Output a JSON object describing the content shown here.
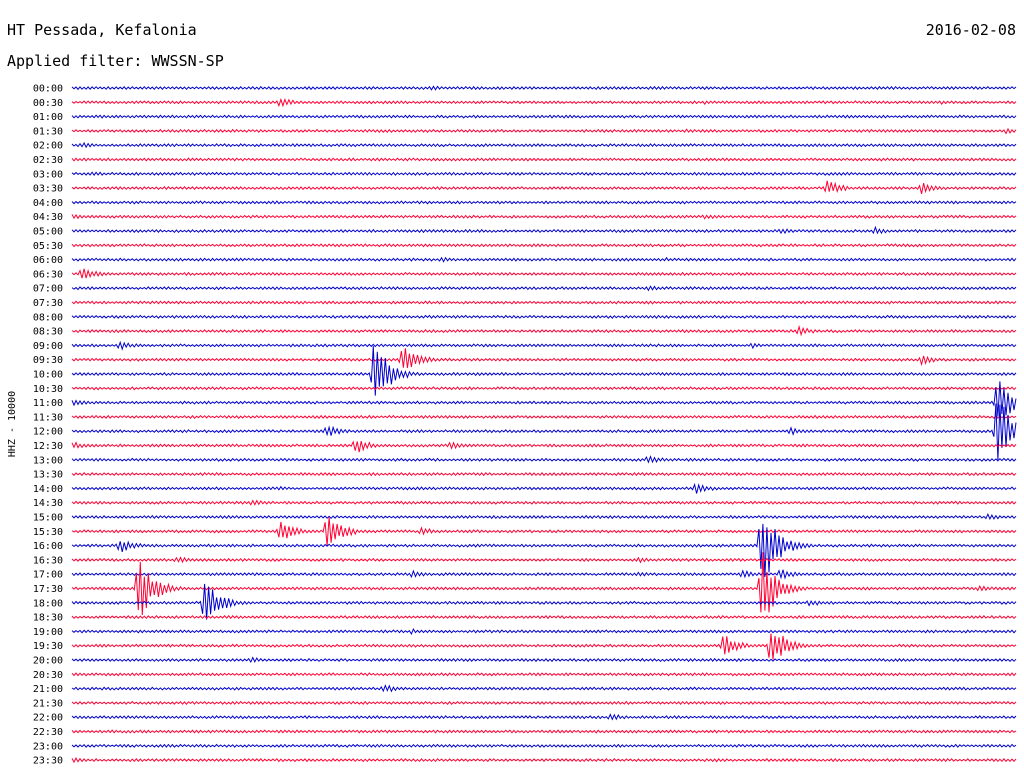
{
  "header": {
    "station": "HT Pessada, Kefalonia",
    "date": "2016-02-08",
    "filter": "Applied filter: WWSSN-SP"
  },
  "chart_data": {
    "type": "line",
    "title": "HT Pessada, Kefalonia",
    "subtitle": "Applied filter: WWSSN-SP",
    "date": "2016-02-08",
    "ylabel": "HHZ - 10000",
    "colors": [
      "#0000cc",
      "#ff0033"
    ],
    "traces": [
      {
        "time": "00:00",
        "events": [
          [
            0.38,
            3
          ]
        ]
      },
      {
        "time": "00:30",
        "events": [
          [
            0.22,
            5
          ],
          [
            0.67,
            2
          ],
          [
            0.92,
            2
          ]
        ]
      },
      {
        "time": "01:00",
        "events": []
      },
      {
        "time": "01:30",
        "events": [
          [
            0.65,
            2
          ],
          [
            0.99,
            3
          ]
        ]
      },
      {
        "time": "02:00",
        "events": [
          [
            0.01,
            3
          ],
          [
            0.86,
            2
          ]
        ]
      },
      {
        "time": "02:30",
        "events": []
      },
      {
        "time": "03:00",
        "events": [
          [
            0.02,
            3
          ]
        ]
      },
      {
        "time": "03:30",
        "events": [
          [
            0.8,
            8
          ],
          [
            0.9,
            6
          ]
        ]
      },
      {
        "time": "04:00",
        "events": []
      },
      {
        "time": "04:30",
        "events": [
          [
            0.0,
            3
          ],
          [
            0.67,
            3
          ]
        ]
      },
      {
        "time": "05:00",
        "events": [
          [
            0.75,
            3
          ],
          [
            0.85,
            4
          ]
        ]
      },
      {
        "time": "05:30",
        "events": []
      },
      {
        "time": "06:00",
        "events": [
          [
            0.39,
            3
          ],
          [
            0.63,
            2
          ]
        ]
      },
      {
        "time": "06:30",
        "events": [
          [
            0.01,
            8
          ]
        ]
      },
      {
        "time": "07:00",
        "events": [
          [
            0.61,
            3
          ]
        ]
      },
      {
        "time": "07:30",
        "events": []
      },
      {
        "time": "08:00",
        "events": [
          [
            0.62,
            2
          ]
        ]
      },
      {
        "time": "08:30",
        "events": [
          [
            0.77,
            5
          ]
        ]
      },
      {
        "time": "09:00",
        "events": [
          [
            0.05,
            5
          ],
          [
            0.72,
            3
          ]
        ]
      },
      {
        "time": "09:30",
        "events": [
          [
            0.35,
            16
          ],
          [
            0.9,
            5
          ]
        ]
      },
      {
        "time": "10:00",
        "events": [
          [
            0.32,
            36
          ]
        ]
      },
      {
        "time": "10:30",
        "events": []
      },
      {
        "time": "11:00",
        "events": [
          [
            0.0,
            4
          ],
          [
            0.98,
            28
          ]
        ]
      },
      {
        "time": "11:30",
        "events": []
      },
      {
        "time": "12:00",
        "events": [
          [
            0.27,
            6
          ],
          [
            0.76,
            4
          ],
          [
            0.98,
            44
          ]
        ]
      },
      {
        "time": "12:30",
        "events": [
          [
            0.0,
            4
          ],
          [
            0.3,
            9
          ],
          [
            0.4,
            4
          ]
        ]
      },
      {
        "time": "13:00",
        "events": [
          [
            0.61,
            5
          ]
        ]
      },
      {
        "time": "13:30",
        "events": []
      },
      {
        "time": "14:00",
        "events": [
          [
            0.22,
            2
          ],
          [
            0.66,
            6
          ]
        ]
      },
      {
        "time": "14:30",
        "events": [
          [
            0.19,
            4
          ]
        ]
      },
      {
        "time": "15:00",
        "events": [
          [
            0.97,
            4
          ]
        ]
      },
      {
        "time": "15:30",
        "events": [
          [
            0.22,
            12
          ],
          [
            0.27,
            20
          ],
          [
            0.37,
            4
          ]
        ]
      },
      {
        "time": "16:00",
        "events": [
          [
            0.05,
            8
          ],
          [
            0.73,
            48
          ]
        ]
      },
      {
        "time": "16:30",
        "events": [
          [
            0.11,
            4
          ],
          [
            0.6,
            3
          ]
        ]
      },
      {
        "time": "17:00",
        "events": [
          [
            0.36,
            4
          ],
          [
            0.6,
            3
          ],
          [
            0.71,
            4
          ],
          [
            0.75,
            6
          ]
        ]
      },
      {
        "time": "17:30",
        "events": [
          [
            0.07,
            36
          ],
          [
            0.73,
            42
          ],
          [
            0.96,
            4
          ]
        ]
      },
      {
        "time": "18:00",
        "events": [
          [
            0.14,
            26
          ],
          [
            0.78,
            4
          ]
        ]
      },
      {
        "time": "18:30",
        "events": []
      },
      {
        "time": "19:00",
        "events": [
          [
            0.36,
            3
          ]
        ]
      },
      {
        "time": "19:30",
        "events": [
          [
            0.69,
            12
          ],
          [
            0.74,
            24
          ]
        ]
      },
      {
        "time": "20:00",
        "events": [
          [
            0.19,
            3
          ]
        ]
      },
      {
        "time": "20:30",
        "events": []
      },
      {
        "time": "21:00",
        "events": [
          [
            0.33,
            5
          ]
        ]
      },
      {
        "time": "21:30",
        "events": []
      },
      {
        "time": "22:00",
        "events": [
          [
            0.57,
            4
          ]
        ]
      },
      {
        "time": "22:30",
        "events": []
      },
      {
        "time": "23:00",
        "events": []
      },
      {
        "time": "23:30",
        "events": [
          [
            0.0,
            3
          ],
          [
            0.68,
            2
          ]
        ]
      }
    ]
  }
}
